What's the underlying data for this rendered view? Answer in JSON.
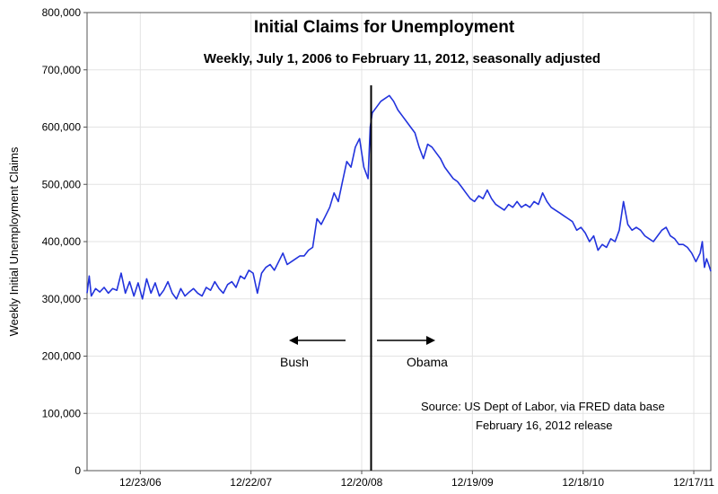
{
  "chart_data": {
    "type": "line",
    "title": "Initial Claims for Unemployment",
    "subtitle": "Weekly, July 1, 2006 to February 11, 2012, seasonally adjusted",
    "ylabel": "Weekly Initial Unemployment Claims",
    "xlabel": "",
    "ylim": [
      0,
      800000
    ],
    "yticks": [
      "0",
      "100,000",
      "200,000",
      "300,000",
      "400,000",
      "500,000",
      "600,000",
      "700,000",
      "800,000"
    ],
    "ytick_values": [
      0,
      100000,
      200000,
      300000,
      400000,
      500000,
      600000,
      700000,
      800000
    ],
    "x_start": "7/1/06",
    "x_end": "2/11/12",
    "xticks": [
      "12/23/06",
      "12/22/07",
      "12/20/08",
      "12/19/09",
      "12/18/10",
      "12/17/11"
    ],
    "grid": true,
    "series": [
      {
        "color": "#2233dd",
        "points": [
          [
            "7/1/06",
            310000
          ],
          [
            "7/8/06",
            340000
          ],
          [
            "7/15/06",
            305000
          ],
          [
            "7/29/06",
            318000
          ],
          [
            "8/12/06",
            312000
          ],
          [
            "8/26/06",
            320000
          ],
          [
            "9/9/06",
            310000
          ],
          [
            "9/23/06",
            318000
          ],
          [
            "10/7/06",
            315000
          ],
          [
            "10/21/06",
            345000
          ],
          [
            "11/4/06",
            310000
          ],
          [
            "11/18/06",
            330000
          ],
          [
            "12/2/06",
            305000
          ],
          [
            "12/16/06",
            328000
          ],
          [
            "12/30/06",
            300000
          ],
          [
            "1/13/07",
            335000
          ],
          [
            "1/27/07",
            310000
          ],
          [
            "2/10/07",
            328000
          ],
          [
            "2/24/07",
            305000
          ],
          [
            "3/10/07",
            315000
          ],
          [
            "3/24/07",
            330000
          ],
          [
            "4/7/07",
            310000
          ],
          [
            "4/21/07",
            300000
          ],
          [
            "5/5/07",
            318000
          ],
          [
            "5/19/07",
            305000
          ],
          [
            "6/2/07",
            312000
          ],
          [
            "6/16/07",
            318000
          ],
          [
            "6/30/07",
            310000
          ],
          [
            "7/14/07",
            305000
          ],
          [
            "7/28/07",
            320000
          ],
          [
            "8/11/07",
            315000
          ],
          [
            "8/25/07",
            330000
          ],
          [
            "9/8/07",
            318000
          ],
          [
            "9/22/07",
            310000
          ],
          [
            "10/6/07",
            325000
          ],
          [
            "10/20/07",
            330000
          ],
          [
            "11/3/07",
            320000
          ],
          [
            "11/17/07",
            340000
          ],
          [
            "12/1/07",
            335000
          ],
          [
            "12/15/07",
            350000
          ],
          [
            "12/29/07",
            345000
          ],
          [
            "1/12/08",
            310000
          ],
          [
            "1/26/08",
            345000
          ],
          [
            "2/9/08",
            355000
          ],
          [
            "2/23/08",
            360000
          ],
          [
            "3/8/08",
            350000
          ],
          [
            "3/22/08",
            365000
          ],
          [
            "4/5/08",
            380000
          ],
          [
            "4/19/08",
            360000
          ],
          [
            "5/3/08",
            365000
          ],
          [
            "5/17/08",
            370000
          ],
          [
            "5/31/08",
            375000
          ],
          [
            "6/14/08",
            375000
          ],
          [
            "6/28/08",
            385000
          ],
          [
            "7/12/08",
            390000
          ],
          [
            "7/26/08",
            440000
          ],
          [
            "8/9/08",
            430000
          ],
          [
            "8/23/08",
            445000
          ],
          [
            "9/6/08",
            460000
          ],
          [
            "9/20/08",
            485000
          ],
          [
            "10/4/08",
            470000
          ],
          [
            "10/18/08",
            505000
          ],
          [
            "11/1/08",
            540000
          ],
          [
            "11/15/08",
            530000
          ],
          [
            "11/29/08",
            565000
          ],
          [
            "12/13/08",
            580000
          ],
          [
            "12/27/08",
            530000
          ],
          [
            "1/10/09",
            510000
          ],
          [
            "1/17/09",
            600000
          ],
          [
            "1/24/09",
            625000
          ],
          [
            "2/7/09",
            635000
          ],
          [
            "2/21/09",
            645000
          ],
          [
            "3/7/09",
            650000
          ],
          [
            "3/21/09",
            655000
          ],
          [
            "4/4/09",
            645000
          ],
          [
            "4/18/09",
            630000
          ],
          [
            "5/2/09",
            620000
          ],
          [
            "5/16/09",
            610000
          ],
          [
            "5/30/09",
            600000
          ],
          [
            "6/13/09",
            590000
          ],
          [
            "6/27/09",
            565000
          ],
          [
            "7/11/09",
            545000
          ],
          [
            "7/25/09",
            570000
          ],
          [
            "8/8/09",
            565000
          ],
          [
            "8/22/09",
            555000
          ],
          [
            "9/5/09",
            545000
          ],
          [
            "9/19/09",
            530000
          ],
          [
            "10/3/09",
            520000
          ],
          [
            "10/17/09",
            510000
          ],
          [
            "10/31/09",
            505000
          ],
          [
            "11/14/09",
            495000
          ],
          [
            "11/28/09",
            485000
          ],
          [
            "12/12/09",
            475000
          ],
          [
            "12/26/09",
            470000
          ],
          [
            "1/9/10",
            480000
          ],
          [
            "1/23/10",
            475000
          ],
          [
            "2/6/10",
            490000
          ],
          [
            "2/20/10",
            475000
          ],
          [
            "3/6/10",
            465000
          ],
          [
            "3/20/10",
            460000
          ],
          [
            "4/3/10",
            455000
          ],
          [
            "4/17/10",
            465000
          ],
          [
            "5/1/10",
            460000
          ],
          [
            "5/15/10",
            470000
          ],
          [
            "5/29/10",
            460000
          ],
          [
            "6/12/10",
            465000
          ],
          [
            "6/26/10",
            460000
          ],
          [
            "7/10/10",
            470000
          ],
          [
            "7/24/10",
            465000
          ],
          [
            "8/7/10",
            485000
          ],
          [
            "8/21/10",
            470000
          ],
          [
            "9/4/10",
            460000
          ],
          [
            "9/18/10",
            455000
          ],
          [
            "10/2/10",
            450000
          ],
          [
            "10/16/10",
            445000
          ],
          [
            "10/30/10",
            440000
          ],
          [
            "11/13/10",
            435000
          ],
          [
            "11/27/10",
            420000
          ],
          [
            "12/11/10",
            425000
          ],
          [
            "12/25/10",
            415000
          ],
          [
            "1/8/11",
            400000
          ],
          [
            "1/22/11",
            410000
          ],
          [
            "2/5/11",
            385000
          ],
          [
            "2/19/11",
            395000
          ],
          [
            "3/5/11",
            390000
          ],
          [
            "3/19/11",
            405000
          ],
          [
            "4/2/11",
            400000
          ],
          [
            "4/16/11",
            420000
          ],
          [
            "4/30/11",
            470000
          ],
          [
            "5/14/11",
            430000
          ],
          [
            "5/28/11",
            420000
          ],
          [
            "6/11/11",
            425000
          ],
          [
            "6/25/11",
            420000
          ],
          [
            "7/9/11",
            410000
          ],
          [
            "7/23/11",
            405000
          ],
          [
            "8/6/11",
            400000
          ],
          [
            "8/20/11",
            410000
          ],
          [
            "9/3/11",
            420000
          ],
          [
            "9/17/11",
            425000
          ],
          [
            "10/1/11",
            410000
          ],
          [
            "10/15/11",
            405000
          ],
          [
            "10/29/11",
            395000
          ],
          [
            "11/12/11",
            395000
          ],
          [
            "11/26/11",
            390000
          ],
          [
            "12/10/11",
            380000
          ],
          [
            "12/24/11",
            365000
          ],
          [
            "1/7/12",
            380000
          ],
          [
            "1/14/12",
            400000
          ],
          [
            "1/21/12",
            355000
          ],
          [
            "1/28/12",
            370000
          ],
          [
            "2/4/12",
            360000
          ],
          [
            "2/11/12",
            348000
          ]
        ]
      }
    ],
    "annotations": {
      "divider_date": "1/20/09",
      "left_label": "Bush",
      "right_label": "Obama",
      "source_line1": "Source:  US Dept of Labor, via FRED data base",
      "source_line2": "February 16, 2012 release"
    }
  }
}
